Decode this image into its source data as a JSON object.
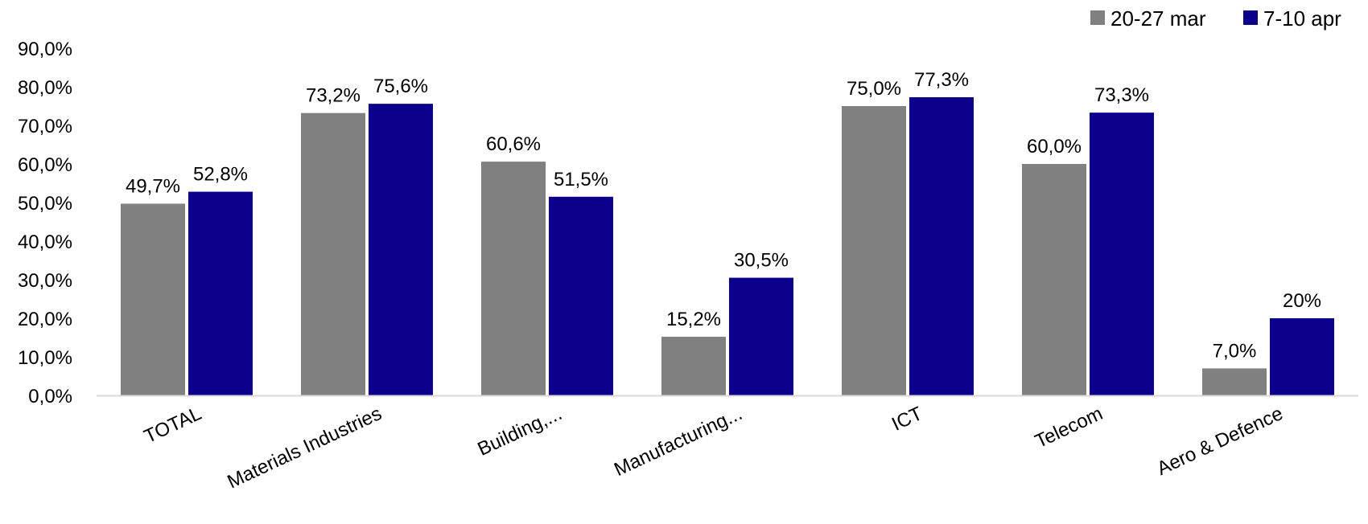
{
  "chart_data": {
    "type": "bar",
    "title": "",
    "xlabel": "",
    "ylabel": "",
    "ylim": [
      0,
      90
    ],
    "yticks": [
      "0,0%",
      "10,0%",
      "20,0%",
      "30,0%",
      "40,0%",
      "50,0%",
      "60,0%",
      "70,0%",
      "80,0%",
      "90,0%"
    ],
    "grid": false,
    "legend_position": "top-right",
    "categories": [
      "TOTAL",
      "Materials Industries",
      "Building,...",
      "Manufacturing...",
      "ICT",
      "Telecom",
      "Aero & Defence"
    ],
    "series": [
      {
        "name": "20-27 mar",
        "color": "#808080",
        "values": [
          49.7,
          73.2,
          60.6,
          15.2,
          75.0,
          60.0,
          7.0
        ],
        "labels": [
          "49,7%",
          "73,2%",
          "60,6%",
          "15,2%",
          "75,0%",
          "60,0%",
          "7,0%"
        ]
      },
      {
        "name": "7-10 apr",
        "color": "#0A008C",
        "values": [
          52.8,
          75.6,
          51.5,
          30.5,
          77.3,
          73.3,
          20
        ],
        "labels": [
          "52,8%",
          "75,6%",
          "51,5%",
          "30,5%",
          "77,3%",
          "73,3%",
          "20%"
        ]
      }
    ]
  }
}
